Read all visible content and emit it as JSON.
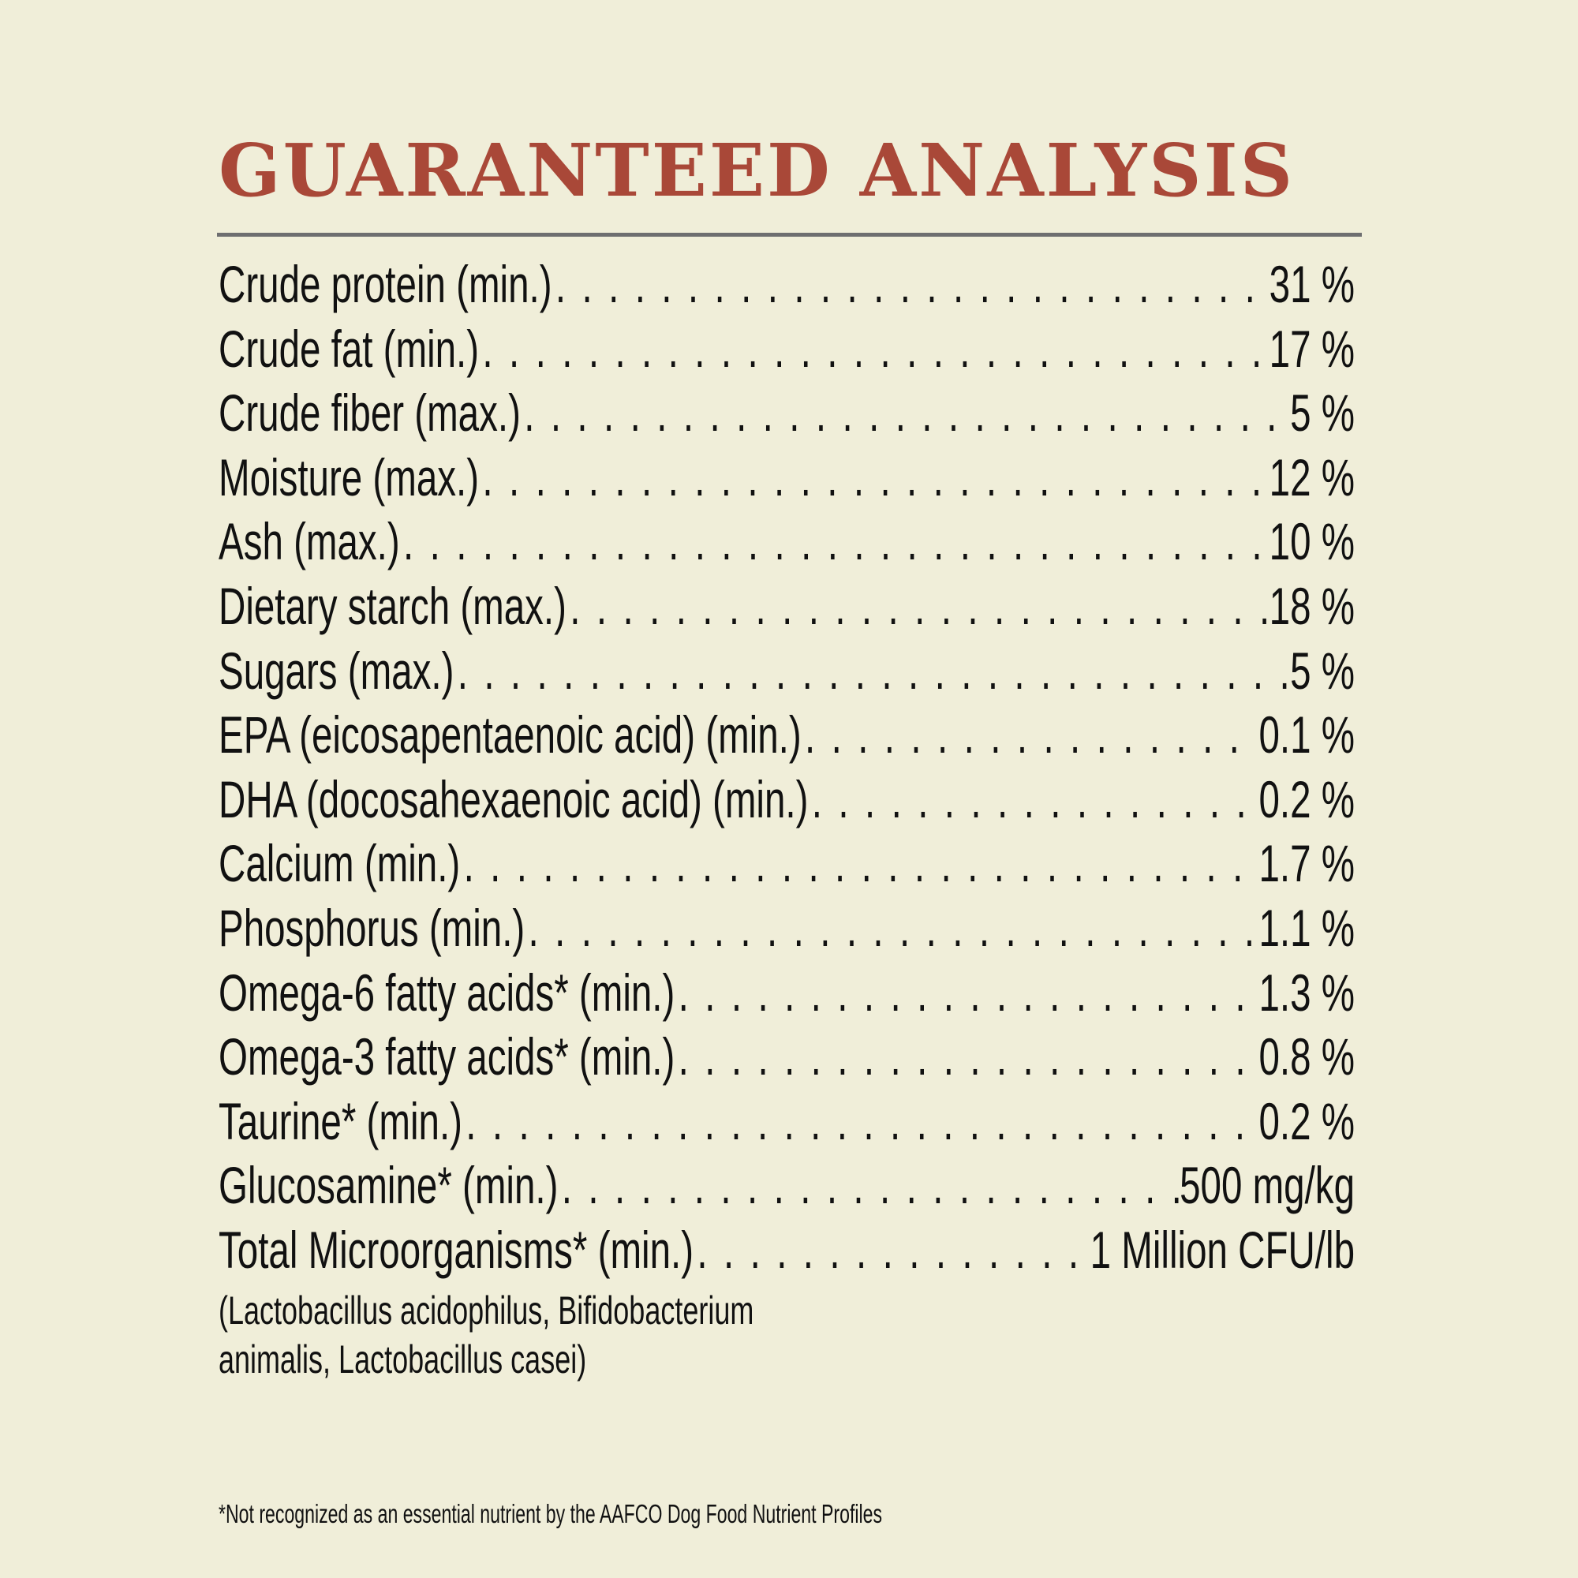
{
  "title": "GUARANTEED ANALYSIS",
  "colors": {
    "title": "#a94838",
    "background": "#f0eed9",
    "rule": "#6e6e70",
    "text": "#111111"
  },
  "rows": [
    {
      "label": "Crude protein (min.)",
      "value": "31 %"
    },
    {
      "label": "Crude fat (min.)",
      "value": "17 %"
    },
    {
      "label": "Crude fiber (max.)",
      "value": "5 %"
    },
    {
      "label": "Moisture (max.)",
      "value": "12 %"
    },
    {
      "label": "Ash (max.)",
      "value": "10 %"
    },
    {
      "label": "Dietary starch (max.)",
      "value": "18 %"
    },
    {
      "label": "Sugars (max.)",
      "value": "5 %"
    },
    {
      "label": "EPA (eicosapentaenoic acid) (min.)",
      "value": "0.1 %"
    },
    {
      "label": "DHA (docosahexaenoic acid) (min.)",
      "value": "0.2 %"
    },
    {
      "label": "Calcium (min.)",
      "value": "1.7 %"
    },
    {
      "label": "Phosphorus (min.)",
      "value": "1.1 %"
    },
    {
      "label": "Omega-6 fatty acids* (min.)",
      "value": "1.3 %"
    },
    {
      "label": "Omega-3 fatty acids* (min.)",
      "value": "0.8 %"
    },
    {
      "label": "Taurine* (min.)",
      "value": "0.2 %"
    },
    {
      "label": "Glucosamine* (min.)",
      "value": "500 mg/kg"
    },
    {
      "label": "Total Microorganisms* (min.)",
      "value": "1 Million CFU/lb"
    }
  ],
  "microorganisms_note": [
    "(Lactobacillus acidophilus, Bifidobacterium",
    "animalis, Lactobacillus casei)"
  ],
  "footnote": "*Not recognized as an essential nutrient by the AAFCO Dog Food Nutrient Profiles"
}
